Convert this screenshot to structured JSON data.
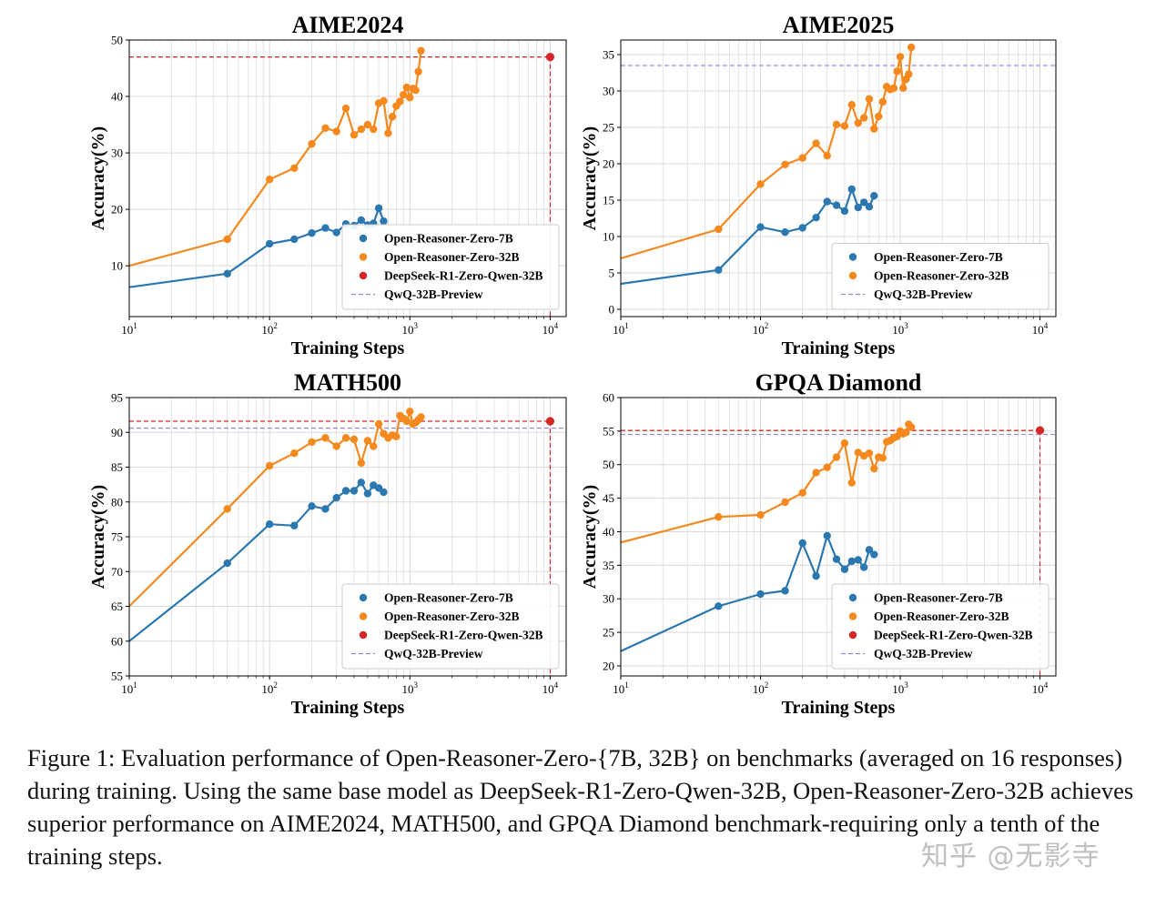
{
  "colors": {
    "series_7b": "#2b78b0",
    "series_32b": "#f5891e",
    "deepseek": "#d62728",
    "qwq": "#8f8fd6",
    "grid": "#d9d9d9",
    "axis": "#000000"
  },
  "chart_data": [
    {
      "type": "line",
      "title": "AIME2024",
      "xlabel": "Training Steps",
      "ylabel": "Accuracy(%)",
      "xscale": "log",
      "xlim": [
        10,
        13000
      ],
      "ylim": [
        1,
        50
      ],
      "yticks": [
        10,
        20,
        30,
        40,
        50
      ],
      "xtick_labels": [
        "10^1",
        "10^2",
        "10^3",
        "10^4"
      ],
      "grid": true,
      "legend_position": "lower-right",
      "legend": [
        "Open-Reasoner-Zero-7B",
        "Open-Reasoner-Zero-32B",
        "DeepSeek-R1-Zero-Qwen-32B",
        "QwQ-32B-Preview"
      ],
      "series": [
        {
          "name": "Open-Reasoner-Zero-7B",
          "x": [
            10,
            50,
            100,
            150,
            200,
            250,
            300,
            350,
            400,
            450,
            500,
            550,
            600,
            650
          ],
          "y": [
            6.2,
            8.6,
            13.9,
            14.7,
            15.8,
            16.7,
            15.9,
            17.4,
            17.1,
            18.1,
            17.2,
            17.5,
            20.2,
            17.9
          ]
        },
        {
          "name": "Open-Reasoner-Zero-32B",
          "x": [
            10,
            50,
            100,
            150,
            200,
            250,
            300,
            350,
            400,
            450,
            500,
            550,
            600,
            650,
            700,
            750,
            800,
            850,
            900,
            950,
            1000,
            1050,
            1100,
            1150,
            1200
          ],
          "y": [
            10.0,
            14.7,
            25.3,
            27.3,
            31.6,
            34.4,
            33.8,
            37.9,
            33.2,
            34.2,
            35.0,
            34.2,
            38.8,
            39.2,
            33.5,
            36.4,
            38.3,
            39.1,
            40.3,
            41.6,
            39.8,
            41.4,
            41.1,
            44.4,
            48.1
          ]
        }
      ],
      "points": [
        {
          "name": "DeepSeek-R1-Zero-Qwen-32B",
          "x": 10000,
          "y": 47.0
        }
      ],
      "hlines": [
        {
          "name": "QwQ-32B-Preview",
          "y": 50.0
        }
      ]
    },
    {
      "type": "line",
      "title": "AIME2025",
      "xlabel": "Training Steps",
      "ylabel": "Accuracy(%)",
      "xscale": "log",
      "xlim": [
        10,
        13000
      ],
      "ylim": [
        -1,
        37
      ],
      "yticks": [
        0,
        5,
        10,
        15,
        20,
        25,
        30,
        35
      ],
      "xtick_labels": [
        "10^1",
        "10^2",
        "10^3",
        "10^4"
      ],
      "grid": true,
      "legend_position": "lower-right",
      "legend": [
        "Open-Reasoner-Zero-7B",
        "Open-Reasoner-Zero-32B",
        "QwQ-32B-Preview"
      ],
      "series": [
        {
          "name": "Open-Reasoner-Zero-7B",
          "x": [
            10,
            50,
            100,
            150,
            200,
            250,
            300,
            350,
            400,
            450,
            500,
            550,
            600,
            650
          ],
          "y": [
            3.5,
            5.4,
            11.3,
            10.6,
            11.2,
            12.6,
            14.8,
            14.3,
            13.5,
            16.5,
            14.0,
            14.7,
            14.1,
            15.6
          ]
        },
        {
          "name": "Open-Reasoner-Zero-32B",
          "x": [
            10,
            50,
            100,
            150,
            200,
            250,
            300,
            350,
            400,
            450,
            500,
            550,
            600,
            650,
            700,
            750,
            800,
            850,
            900,
            950,
            1000,
            1050,
            1100,
            1150,
            1200
          ],
          "y": [
            7.0,
            11.0,
            17.2,
            19.9,
            20.8,
            22.8,
            21.1,
            25.4,
            25.2,
            28.1,
            25.6,
            26.3,
            28.9,
            24.8,
            26.5,
            28.5,
            30.6,
            30.2,
            30.4,
            32.7,
            34.7,
            30.4,
            31.6,
            32.3,
            36.0
          ]
        }
      ],
      "points": [],
      "hlines": [
        {
          "name": "QwQ-32B-Preview",
          "y": 33.5
        }
      ]
    },
    {
      "type": "line",
      "title": "MATH500",
      "xlabel": "Training Steps",
      "ylabel": "Accuracy(%)",
      "xscale": "log",
      "xlim": [
        10,
        13000
      ],
      "ylim": [
        55,
        95
      ],
      "yticks": [
        55,
        60,
        65,
        70,
        75,
        80,
        85,
        90,
        95
      ],
      "xtick_labels": [
        "10^1",
        "10^2",
        "10^3",
        "10^4"
      ],
      "grid": true,
      "legend_position": "lower-right",
      "legend": [
        "Open-Reasoner-Zero-7B",
        "Open-Reasoner-Zero-32B",
        "DeepSeek-R1-Zero-Qwen-32B",
        "QwQ-32B-Preview"
      ],
      "series": [
        {
          "name": "Open-Reasoner-Zero-7B",
          "x": [
            10,
            50,
            100,
            150,
            200,
            250,
            300,
            350,
            400,
            450,
            500,
            550,
            600,
            650
          ],
          "y": [
            60.0,
            71.2,
            76.8,
            76.6,
            79.4,
            79.0,
            80.6,
            81.6,
            81.6,
            82.8,
            81.2,
            82.4,
            82.0,
            81.4
          ]
        },
        {
          "name": "Open-Reasoner-Zero-32B",
          "x": [
            10,
            50,
            100,
            150,
            200,
            250,
            300,
            350,
            400,
            450,
            500,
            550,
            600,
            650,
            700,
            750,
            800,
            850,
            900,
            950,
            1000,
            1050,
            1100,
            1150,
            1200
          ],
          "y": [
            65.0,
            79.0,
            85.2,
            87.0,
            88.6,
            89.2,
            88.0,
            89.2,
            89.0,
            85.6,
            88.8,
            88.0,
            91.2,
            89.8,
            89.2,
            89.6,
            89.4,
            92.4,
            92.0,
            91.6,
            93.0,
            91.2,
            91.4,
            91.8,
            92.2
          ]
        }
      ],
      "points": [
        {
          "name": "DeepSeek-R1-Zero-Qwen-32B",
          "x": 10000,
          "y": 91.6
        }
      ],
      "hlines": [
        {
          "name": "QwQ-32B-Preview",
          "y": 90.6
        }
      ]
    },
    {
      "type": "line",
      "title": "GPQA Diamond",
      "xlabel": "Training Steps",
      "ylabel": "Accuracy(%)",
      "xscale": "log",
      "xlim": [
        10,
        13000
      ],
      "ylim": [
        18.5,
        60
      ],
      "yticks": [
        20,
        25,
        30,
        35,
        40,
        45,
        50,
        55,
        60
      ],
      "xtick_labels": [
        "10^1",
        "10^2",
        "10^3",
        "10^4"
      ],
      "grid": true,
      "legend_position": "lower-right",
      "legend": [
        "Open-Reasoner-Zero-7B",
        "Open-Reasoner-Zero-32B",
        "DeepSeek-R1-Zero-Qwen-32B",
        "QwQ-32B-Preview"
      ],
      "series": [
        {
          "name": "Open-Reasoner-Zero-7B",
          "x": [
            10,
            50,
            100,
            150,
            200,
            250,
            300,
            350,
            400,
            450,
            500,
            550,
            600,
            650
          ],
          "y": [
            22.2,
            28.9,
            30.7,
            31.2,
            38.3,
            33.4,
            39.4,
            35.9,
            34.4,
            35.6,
            35.8,
            34.7,
            37.3,
            36.6
          ]
        },
        {
          "name": "Open-Reasoner-Zero-32B",
          "x": [
            10,
            50,
            100,
            150,
            200,
            250,
            300,
            350,
            400,
            450,
            500,
            550,
            600,
            650,
            700,
            750,
            800,
            850,
            900,
            950,
            1000,
            1050,
            1100,
            1150,
            1200
          ],
          "y": [
            38.4,
            42.2,
            42.5,
            44.4,
            45.8,
            48.8,
            49.6,
            51.1,
            53.2,
            47.3,
            51.8,
            51.3,
            51.7,
            49.4,
            51.1,
            51.0,
            53.4,
            53.6,
            54.0,
            54.2,
            55.0,
            54.6,
            54.8,
            56.0,
            55.6
          ]
        }
      ],
      "points": [
        {
          "name": "DeepSeek-R1-Zero-Qwen-32B",
          "x": 10000,
          "y": 55.1
        }
      ],
      "hlines": [
        {
          "name": "QwQ-32B-Preview",
          "y": 54.5
        }
      ]
    }
  ],
  "caption": "Figure 1: Evaluation performance of Open-Reasoner-Zero-{7B, 32B} on benchmarks (averaged on 16 responses) during training. Using the same base model as DeepSeek-R1-Zero-Qwen-32B, Open-Reasoner-Zero-32B achieves superior performance on AIME2024, MATH500, and GPQA Diamond benchmark-requiring only a tenth of the training steps.",
  "watermark": "知乎 @无影寺"
}
